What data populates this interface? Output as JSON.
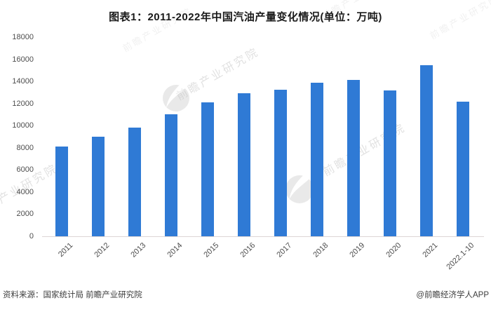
{
  "title": "图表1：2011-2022年中国汽油产量变化情况(单位：万吨)",
  "chart_data": {
    "type": "bar",
    "title": "图表1：2011-2022年中国汽油产量变化情况(单位：万吨)",
    "unit": "万吨",
    "categories": [
      "2011",
      "2012",
      "2013",
      "2014",
      "2015",
      "2016",
      "2017",
      "2018",
      "2019",
      "2020",
      "2021",
      "2022.1-10"
    ],
    "values": [
      8141,
      8976,
      9830,
      11029,
      12103,
      12932,
      13277,
      13882,
      14122,
      13190,
      15457,
      12196
    ],
    "xlabel": "",
    "ylabel": "",
    "ylim": [
      0,
      18000
    ],
    "ytick_step": 2000,
    "grid": false,
    "legend_position": "none",
    "bar_color": "#2F7AD5"
  },
  "footer": {
    "source": "资料来源：国家统计局 前瞻产业研究院",
    "credit": "@前瞻经济学人APP"
  },
  "watermark": {
    "text": "前瞻产业研究院",
    "logo_icon": "qianzhan-logo-icon",
    "color": "#b9b9b9"
  }
}
